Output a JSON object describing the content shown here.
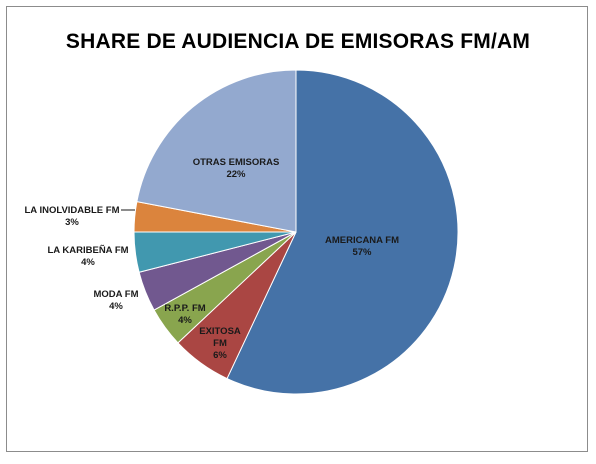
{
  "chart_data": {
    "type": "pie",
    "title": "SHARE DE AUDIENCIA DE EMISORAS FM/AM",
    "slices": [
      {
        "label": "AMERICANA FM",
        "value": 57,
        "pct_label": "57%",
        "color": "#4572A7"
      },
      {
        "label": "EXITOSA FM",
        "value": 6,
        "pct_label": "6%",
        "color": "#AA4643"
      },
      {
        "label": "R.P.P. FM",
        "value": 4,
        "pct_label": "4%",
        "color": "#89A54E"
      },
      {
        "label": "MODA FM",
        "value": 4,
        "pct_label": "4%",
        "color": "#71588F"
      },
      {
        "label": "LA KARIBEÑA FM",
        "value": 4,
        "pct_label": "4%",
        "color": "#4198AF"
      },
      {
        "label": "LA INOLVIDABLE FM",
        "value": 3,
        "pct_label": "3%",
        "color": "#DB843D"
      },
      {
        "label": "OTRAS EMISORAS",
        "value": 22,
        "pct_label": "22%",
        "color": "#93A9CF"
      }
    ],
    "legend": "none"
  }
}
